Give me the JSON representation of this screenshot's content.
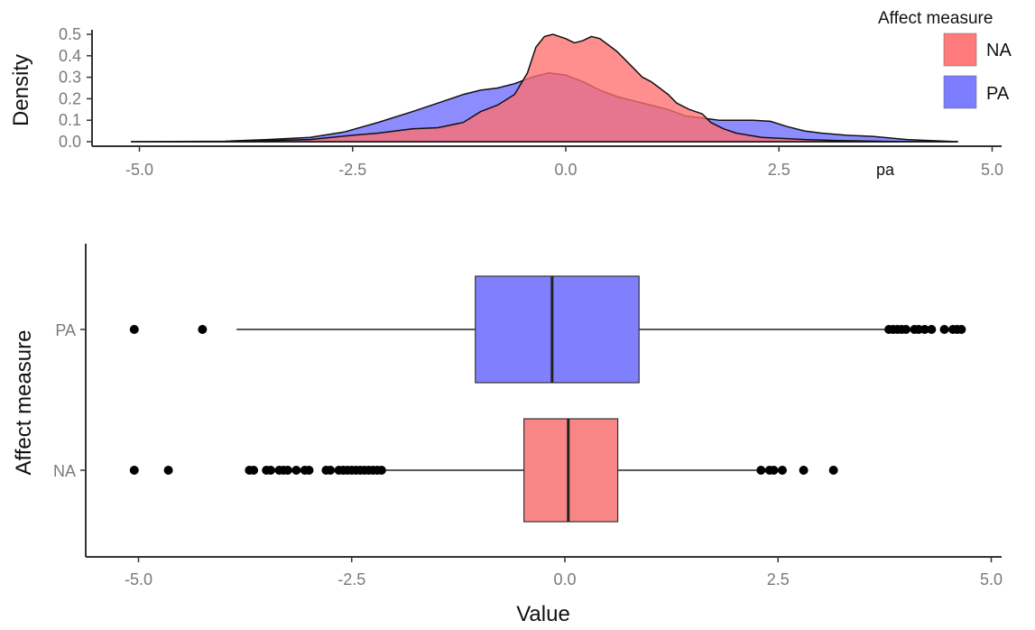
{
  "chart_data": [
    {
      "type": "area",
      "subtype": "density",
      "title": "",
      "xlabel": "pa",
      "ylabel": "Density",
      "xlim": [
        -5.2,
        5.2
      ],
      "ylim": [
        0,
        0.52
      ],
      "x_ticks": [
        "-5.0",
        "-2.5",
        "0.0",
        "2.5",
        "5.0"
      ],
      "y_ticks": [
        "0.0",
        "0.1",
        "0.2",
        "0.3",
        "0.4",
        "0.5"
      ],
      "grid": false,
      "legend": {
        "title": "Affect measure",
        "position": "top-right",
        "entries": [
          {
            "label": "NA",
            "color": "#f8766d"
          },
          {
            "label": "PA",
            "color": "#6c6cff"
          }
        ]
      },
      "series": [
        {
          "name": "NA",
          "color": "#ff6f6f",
          "points": [
            [
              -5.1,
              0.0
            ],
            [
              -4.0,
              0.0
            ],
            [
              -3.5,
              0.005
            ],
            [
              -3.0,
              0.01
            ],
            [
              -2.5,
              0.03
            ],
            [
              -2.2,
              0.04
            ],
            [
              -2.0,
              0.05
            ],
            [
              -1.8,
              0.06
            ],
            [
              -1.5,
              0.065
            ],
            [
              -1.2,
              0.09
            ],
            [
              -1.0,
              0.14
            ],
            [
              -0.8,
              0.17
            ],
            [
              -0.6,
              0.22
            ],
            [
              -0.45,
              0.32
            ],
            [
              -0.35,
              0.44
            ],
            [
              -0.25,
              0.49
            ],
            [
              -0.15,
              0.5
            ],
            [
              0.0,
              0.48
            ],
            [
              0.1,
              0.46
            ],
            [
              0.2,
              0.47
            ],
            [
              0.3,
              0.49
            ],
            [
              0.4,
              0.48
            ],
            [
              0.5,
              0.45
            ],
            [
              0.6,
              0.42
            ],
            [
              0.75,
              0.36
            ],
            [
              0.9,
              0.3
            ],
            [
              1.0,
              0.28
            ],
            [
              1.1,
              0.25
            ],
            [
              1.2,
              0.22
            ],
            [
              1.3,
              0.18
            ],
            [
              1.45,
              0.15
            ],
            [
              1.6,
              0.13
            ],
            [
              1.7,
              0.09
            ],
            [
              1.85,
              0.06
            ],
            [
              2.0,
              0.04
            ],
            [
              2.3,
              0.02
            ],
            [
              2.8,
              0.01
            ],
            [
              3.2,
              0.005
            ],
            [
              4.0,
              0.0
            ],
            [
              4.6,
              0.0
            ]
          ]
        },
        {
          "name": "PA",
          "color": "#6c6cff",
          "points": [
            [
              -5.1,
              0.0
            ],
            [
              -4.0,
              0.002
            ],
            [
              -3.5,
              0.01
            ],
            [
              -3.0,
              0.02
            ],
            [
              -2.6,
              0.045
            ],
            [
              -2.2,
              0.09
            ],
            [
              -1.8,
              0.14
            ],
            [
              -1.5,
              0.18
            ],
            [
              -1.2,
              0.22
            ],
            [
              -1.0,
              0.24
            ],
            [
              -0.8,
              0.25
            ],
            [
              -0.6,
              0.27
            ],
            [
              -0.4,
              0.3
            ],
            [
              -0.2,
              0.32
            ],
            [
              0.0,
              0.31
            ],
            [
              0.2,
              0.28
            ],
            [
              0.4,
              0.24
            ],
            [
              0.6,
              0.21
            ],
            [
              0.8,
              0.19
            ],
            [
              1.0,
              0.17
            ],
            [
              1.2,
              0.15
            ],
            [
              1.4,
              0.12
            ],
            [
              1.6,
              0.11
            ],
            [
              1.8,
              0.1
            ],
            [
              2.0,
              0.1
            ],
            [
              2.2,
              0.1
            ],
            [
              2.4,
              0.095
            ],
            [
              2.6,
              0.07
            ],
            [
              2.8,
              0.05
            ],
            [
              3.0,
              0.04
            ],
            [
              3.3,
              0.03
            ],
            [
              3.6,
              0.025
            ],
            [
              4.0,
              0.01
            ],
            [
              4.6,
              0.0
            ]
          ]
        }
      ],
      "stray_label": "pa"
    },
    {
      "type": "boxplot",
      "title": "",
      "xlabel": "Value",
      "ylabel": "Affect measure",
      "xlim": [
        -5.2,
        5.2
      ],
      "x_ticks": [
        "-5.0",
        "-2.5",
        "0.0",
        "2.5",
        "5.0"
      ],
      "categories": [
        "PA",
        "NA"
      ],
      "grid": false,
      "boxes": [
        {
          "name": "PA",
          "color": "#8080ff",
          "lower_whisker": -3.85,
          "q1": -1.05,
          "median": -0.15,
          "q3": 0.87,
          "upper_whisker": 3.75,
          "outliers": [
            -5.05,
            -4.25,
            3.8,
            3.85,
            3.9,
            3.95,
            4.0,
            4.1,
            4.15,
            4.22,
            4.3,
            4.45,
            4.55,
            4.6,
            4.65
          ]
        },
        {
          "name": "NA",
          "color": "#f98686",
          "lower_whisker": -2.1,
          "q1": -0.48,
          "median": 0.04,
          "q3": 0.62,
          "upper_whisker": 2.25,
          "outliers": [
            -5.05,
            -4.65,
            -3.7,
            -3.65,
            -3.5,
            -3.45,
            -3.35,
            -3.3,
            -3.25,
            -3.15,
            -3.05,
            -3.0,
            -2.8,
            -2.75,
            -2.65,
            -2.6,
            -2.55,
            -2.5,
            -2.45,
            -2.4,
            -2.35,
            -2.3,
            -2.25,
            -2.2,
            -2.15,
            2.3,
            2.4,
            2.45,
            2.55,
            2.8,
            3.15
          ]
        }
      ]
    }
  ]
}
